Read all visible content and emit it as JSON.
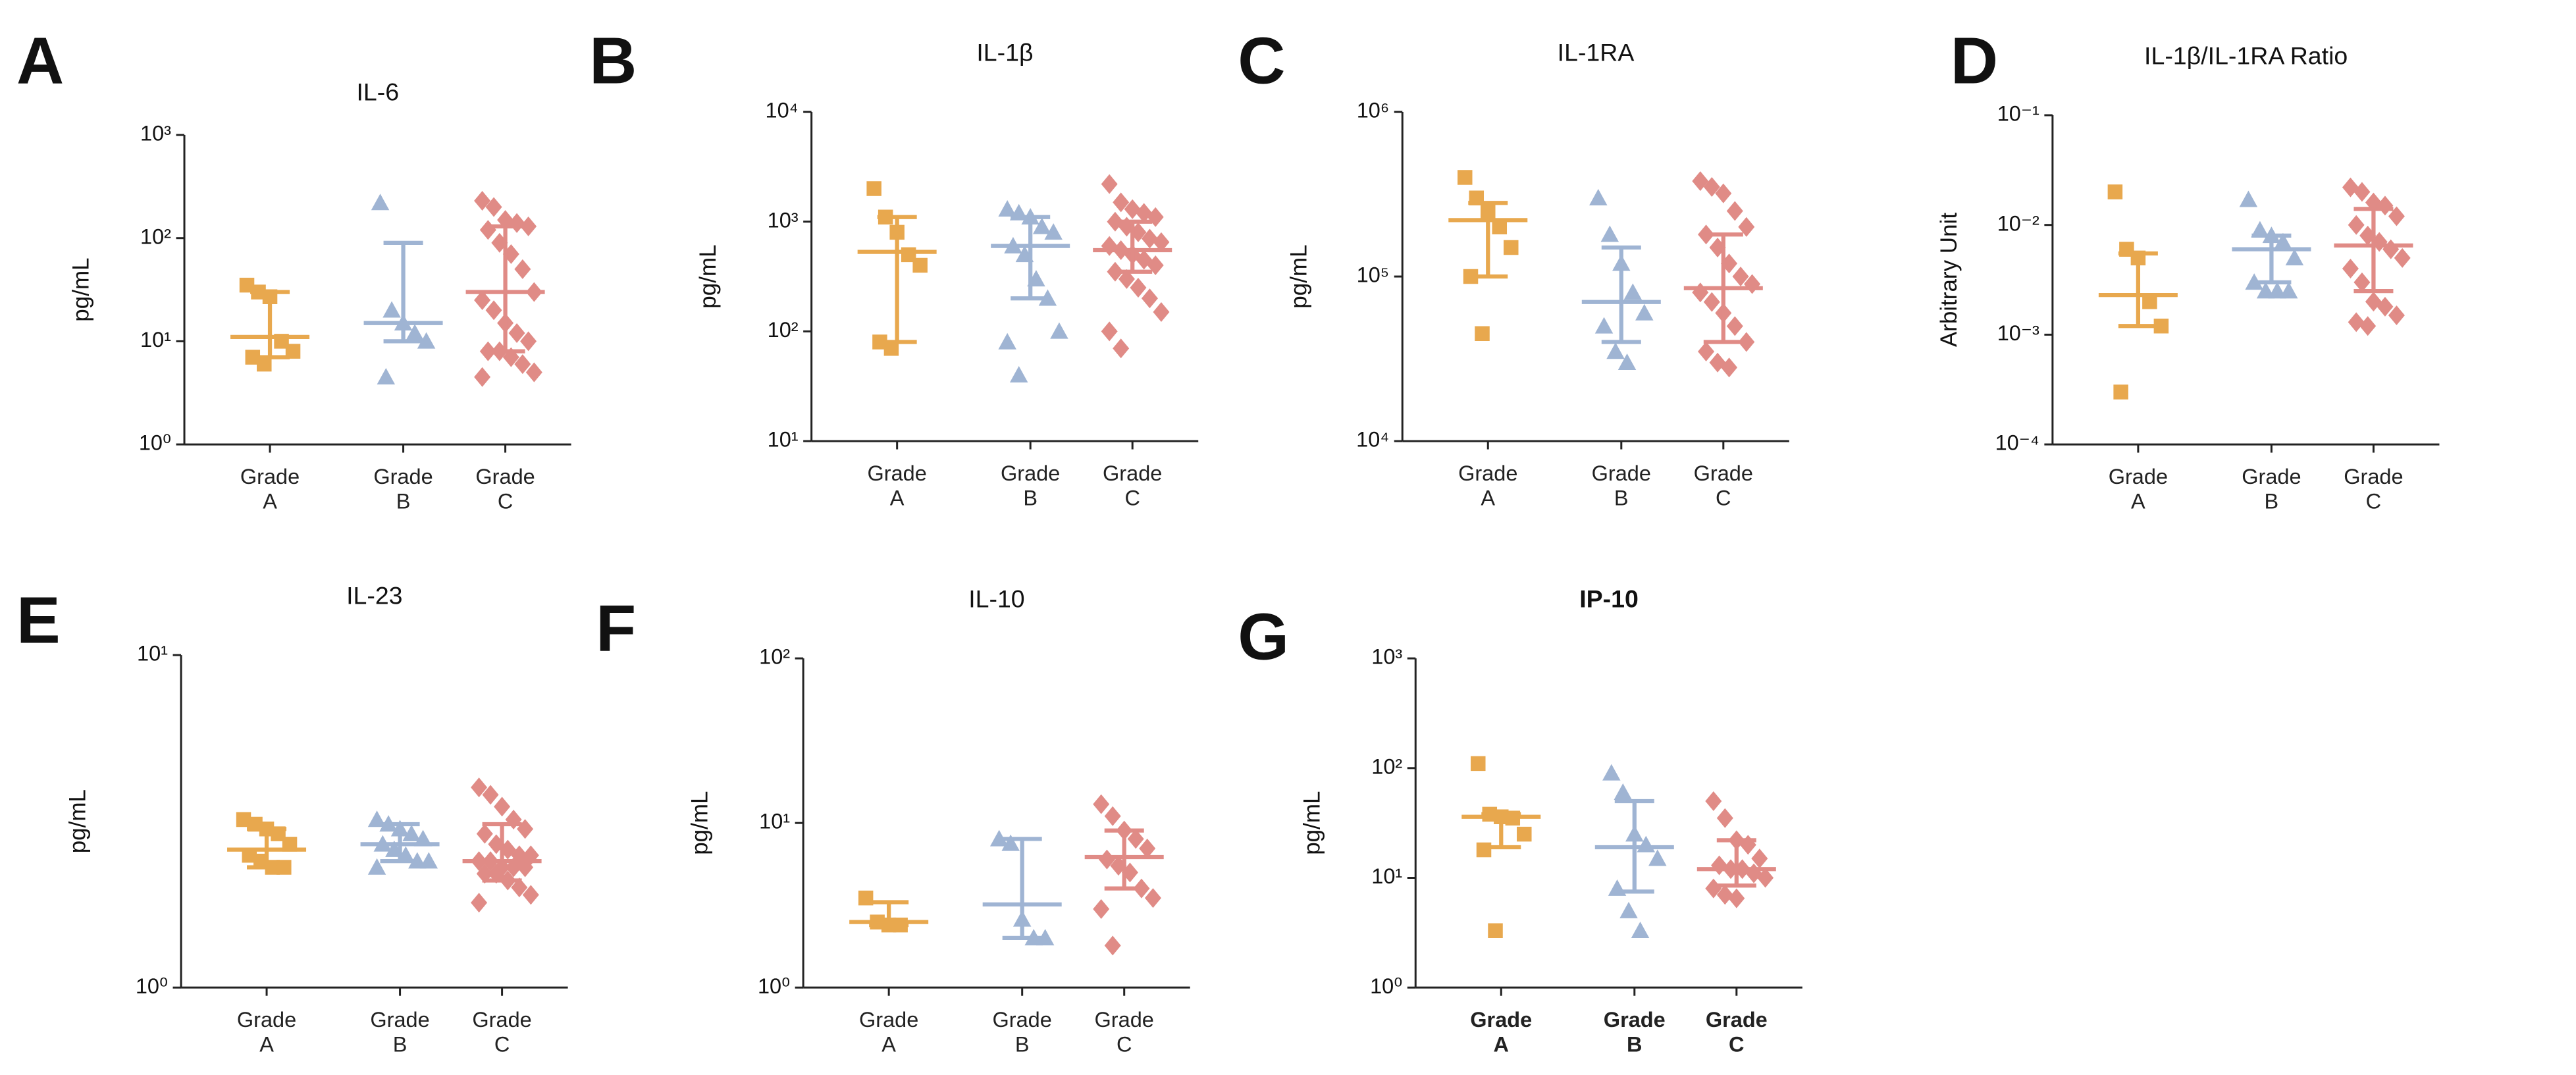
{
  "chart_data": [
    {
      "type": "dot",
      "panel": "A",
      "title": "IL-6",
      "y_label": "pg/mL",
      "log_scale": true,
      "bold": false,
      "categories": [
        "Grade\nA",
        "Grade\nB",
        "Grade\nC"
      ],
      "colors": [
        "#e8a84e",
        "#9fb4d3",
        "#e08b86"
      ],
      "markers": [
        "square",
        "triangle",
        "diamond"
      ],
      "ylim": [
        1,
        1000
      ],
      "yticks": [
        {
          "value": 1,
          "label": "10⁰"
        },
        {
          "value": 10,
          "label": "10¹"
        },
        {
          "value": 100,
          "label": "10²"
        },
        {
          "value": 1000,
          "label": "10³"
        }
      ],
      "points": [
        [
          35,
          30,
          27,
          10,
          8,
          7,
          6
        ],
        [
          220,
          20,
          15,
          12,
          10,
          4.5
        ],
        [
          230,
          200,
          150,
          140,
          130,
          120,
          90,
          70,
          50,
          30,
          25,
          20,
          15,
          12,
          10,
          8,
          8,
          7,
          6,
          5,
          4.5
        ]
      ],
      "median": [
        11,
        15,
        30
      ],
      "q1": [
        7,
        10,
        8
      ],
      "q3": [
        30,
        90,
        130
      ]
    },
    {
      "type": "dot",
      "panel": "B",
      "title": "IL-1β",
      "y_label": "pg/mL",
      "log_scale": true,
      "bold": false,
      "categories": [
        "Grade\nA",
        "Grade\nB",
        "Grade\nC"
      ],
      "colors": [
        "#e8a84e",
        "#9fb4d3",
        "#e08b86"
      ],
      "markers": [
        "square",
        "triangle",
        "diamond"
      ],
      "ylim": [
        10,
        10000
      ],
      "yticks": [
        {
          "value": 10,
          "label": "10¹"
        },
        {
          "value": 100,
          "label": "10²"
        },
        {
          "value": 1000,
          "label": "10³"
        },
        {
          "value": 10000,
          "label": "10⁴"
        }
      ],
      "points": [
        [
          2000,
          1100,
          800,
          500,
          400,
          80,
          70
        ],
        [
          1300,
          1200,
          1100,
          900,
          800,
          600,
          500,
          300,
          200,
          100,
          80,
          40
        ],
        [
          2200,
          1500,
          1300,
          1200,
          1100,
          1000,
          900,
          800,
          700,
          650,
          600,
          550,
          500,
          450,
          400,
          350,
          300,
          250,
          200,
          150,
          100,
          70
        ]
      ],
      "median": [
        530,
        600,
        550
      ],
      "q1": [
        80,
        200,
        350
      ],
      "q3": [
        1100,
        1100,
        1000
      ]
    },
    {
      "type": "dot",
      "panel": "C",
      "title": "IL-1RA",
      "y_label": "pg/mL",
      "log_scale": true,
      "bold": false,
      "categories": [
        "Grade\nA",
        "Grade\nB",
        "Grade\nC"
      ],
      "colors": [
        "#e8a84e",
        "#9fb4d3",
        "#e08b86"
      ],
      "markers": [
        "square",
        "triangle",
        "diamond"
      ],
      "ylim": [
        10000,
        1000000
      ],
      "yticks": [
        {
          "value": 10000,
          "label": "10⁴"
        },
        {
          "value": 100000,
          "label": "10⁵"
        },
        {
          "value": 1000000,
          "label": "10⁶"
        }
      ],
      "points": [
        [
          400000,
          300000,
          250000,
          200000,
          150000,
          100000,
          45000
        ],
        [
          300000,
          180000,
          120000,
          80000,
          60000,
          50000,
          35000,
          30000
        ],
        [
          380000,
          350000,
          320000,
          250000,
          200000,
          180000,
          150000,
          120000,
          100000,
          90000,
          80000,
          70000,
          60000,
          50000,
          40000,
          35000,
          30000,
          28000
        ]
      ],
      "median": [
        220000,
        70000,
        85000
      ],
      "q1": [
        100000,
        40000,
        40000
      ],
      "q3": [
        280000,
        150000,
        180000
      ]
    },
    {
      "type": "dot",
      "panel": "D",
      "title": "IL-1β/IL-1RA Ratio",
      "y_label": "Arbitrary Unit",
      "log_scale": true,
      "bold": false,
      "categories": [
        "Grade\nA",
        "Grade\nB",
        "Grade\nC"
      ],
      "colors": [
        "#e8a84e",
        "#9fb4d3",
        "#e08b86"
      ],
      "markers": [
        "square",
        "triangle",
        "diamond"
      ],
      "ylim": [
        0.0001,
        0.1
      ],
      "yticks": [
        {
          "value": 0.0001,
          "label": "10⁻⁴"
        },
        {
          "value": 0.001,
          "label": "10⁻³"
        },
        {
          "value": 0.01,
          "label": "10⁻²"
        },
        {
          "value": 0.1,
          "label": "10⁻¹"
        }
      ],
      "points": [
        [
          0.02,
          0.006,
          0.005,
          0.002,
          0.0012,
          0.0003
        ],
        [
          0.017,
          0.009,
          0.008,
          0.007,
          0.005,
          0.003,
          0.0025,
          0.0025,
          0.0025
        ],
        [
          0.022,
          0.02,
          0.016,
          0.015,
          0.012,
          0.01,
          0.008,
          0.007,
          0.006,
          0.005,
          0.004,
          0.003,
          0.002,
          0.0018,
          0.0015,
          0.0013,
          0.0012
        ]
      ],
      "median": [
        0.0023,
        0.006,
        0.0065
      ],
      "q1": [
        0.0012,
        0.003,
        0.0025
      ],
      "q3": [
        0.0055,
        0.008,
        0.014
      ]
    },
    {
      "type": "dot",
      "panel": "E",
      "title": "IL-23",
      "y_label": "pg/mL",
      "log_scale": true,
      "bold": false,
      "categories": [
        "Grade\nA",
        "Grade\nB",
        "Grade\nC"
      ],
      "colors": [
        "#e8a84e",
        "#9fb4d3",
        "#e08b86"
      ],
      "markers": [
        "square",
        "triangle",
        "diamond"
      ],
      "ylim": [
        1,
        10
      ],
      "yticks": [
        {
          "value": 1,
          "label": "10⁰"
        },
        {
          "value": 10,
          "label": "10¹"
        }
      ],
      "points": [
        [
          3.2,
          3.1,
          3.0,
          2.9,
          2.7,
          2.5,
          2.4,
          2.3,
          2.3
        ],
        [
          3.2,
          3.1,
          3.0,
          2.9,
          2.8,
          2.7,
          2.6,
          2.5,
          2.4,
          2.4,
          2.3
        ],
        [
          4.0,
          3.8,
          3.5,
          3.2,
          3.0,
          2.9,
          2.7,
          2.6,
          2.5,
          2.5,
          2.4,
          2.4,
          2.3,
          2.3,
          2.3,
          2.2,
          2.2,
          2.1,
          2.0,
          1.9,
          1.8
        ]
      ],
      "median": [
        2.6,
        2.7,
        2.4
      ],
      "q1": [
        2.3,
        2.4,
        2.1
      ],
      "q3": [
        3.0,
        3.1,
        3.1
      ]
    },
    {
      "type": "dot",
      "panel": "F",
      "title": "IL-10",
      "y_label": "pg/mL",
      "log_scale": true,
      "bold": false,
      "categories": [
        "Grade\nA",
        "Grade\nB",
        "Grade\nC"
      ],
      "colors": [
        "#e8a84e",
        "#9fb4d3",
        "#e08b86"
      ],
      "markers": [
        "square",
        "triangle",
        "diamond"
      ],
      "ylim": [
        1,
        100
      ],
      "yticks": [
        {
          "value": 1,
          "label": "10⁰"
        },
        {
          "value": 10,
          "label": "10¹"
        },
        {
          "value": 100,
          "label": "10²"
        }
      ],
      "points": [
        [
          3.5,
          2.5,
          2.4,
          2.4
        ],
        [
          8,
          7.5,
          2.6,
          2.0,
          2.0
        ],
        [
          13,
          11,
          9,
          8,
          7,
          6,
          5.5,
          5,
          4,
          3.5,
          3,
          1.8
        ]
      ],
      "median": [
        2.5,
        3.2,
        6.2
      ],
      "q1": [
        2.4,
        2.0,
        4
      ],
      "q3": [
        3.3,
        8,
        9
      ]
    },
    {
      "type": "dot",
      "panel": "G",
      "title": "IP-10",
      "y_label": "pg/mL",
      "log_scale": true,
      "bold": true,
      "categories": [
        "Grade\nA",
        "Grade\nB",
        "Grade\nC"
      ],
      "colors": [
        "#e8a84e",
        "#9fb4d3",
        "#e08b86"
      ],
      "markers": [
        "square",
        "triangle",
        "diamond"
      ],
      "ylim": [
        1,
        1000
      ],
      "yticks": [
        {
          "value": 1,
          "label": "10⁰"
        },
        {
          "value": 10,
          "label": "10¹"
        },
        {
          "value": 100,
          "label": "10²"
        },
        {
          "value": 1000,
          "label": "10³"
        }
      ],
      "points": [
        [
          110,
          38,
          36,
          35,
          25,
          18,
          3.3
        ],
        [
          90,
          60,
          25,
          20,
          15,
          8,
          5,
          3.3
        ],
        [
          50,
          35,
          22,
          20,
          15,
          13,
          12,
          12,
          11,
          10,
          8,
          7,
          6.5
        ]
      ],
      "median": [
        36,
        19,
        12
      ],
      "q1": [
        19,
        7.5,
        8.5
      ],
      "q3": [
        38,
        50,
        22
      ]
    }
  ]
}
